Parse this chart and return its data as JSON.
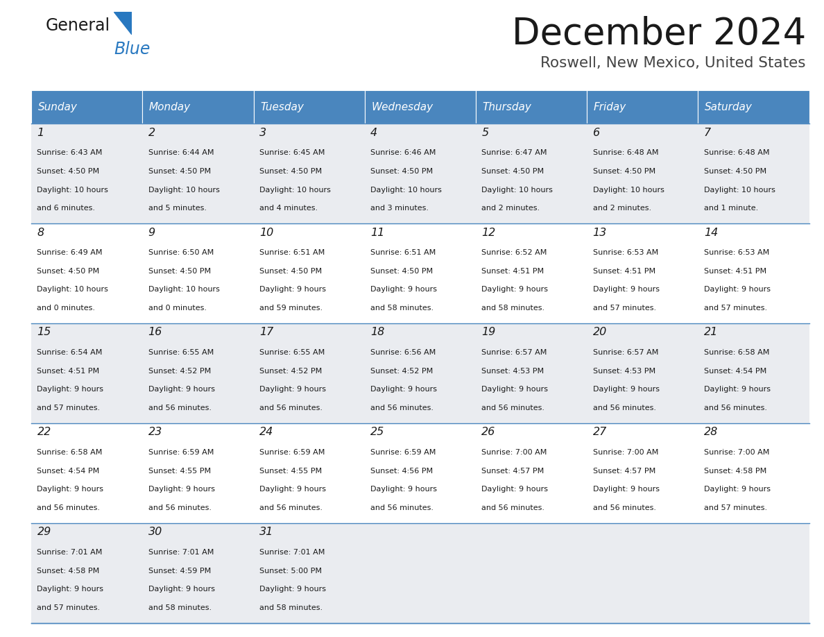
{
  "title": "December 2024",
  "subtitle": "Roswell, New Mexico, United States",
  "header_bg": "#4A86BE",
  "header_text_color": "#FFFFFF",
  "row_bg_odd": "#EAECF0",
  "row_bg_even": "#FFFFFF",
  "cell_border_color": "#4A86BE",
  "days_of_week": [
    "Sunday",
    "Monday",
    "Tuesday",
    "Wednesday",
    "Thursday",
    "Friday",
    "Saturday"
  ],
  "calendar_data": [
    [
      {
        "day": 1,
        "sunrise": "6:43 AM",
        "sunset": "4:50 PM",
        "daylight_line1": "Daylight: 10 hours",
        "daylight_line2": "and 6 minutes."
      },
      {
        "day": 2,
        "sunrise": "6:44 AM",
        "sunset": "4:50 PM",
        "daylight_line1": "Daylight: 10 hours",
        "daylight_line2": "and 5 minutes."
      },
      {
        "day": 3,
        "sunrise": "6:45 AM",
        "sunset": "4:50 PM",
        "daylight_line1": "Daylight: 10 hours",
        "daylight_line2": "and 4 minutes."
      },
      {
        "day": 4,
        "sunrise": "6:46 AM",
        "sunset": "4:50 PM",
        "daylight_line1": "Daylight: 10 hours",
        "daylight_line2": "and 3 minutes."
      },
      {
        "day": 5,
        "sunrise": "6:47 AM",
        "sunset": "4:50 PM",
        "daylight_line1": "Daylight: 10 hours",
        "daylight_line2": "and 2 minutes."
      },
      {
        "day": 6,
        "sunrise": "6:48 AM",
        "sunset": "4:50 PM",
        "daylight_line1": "Daylight: 10 hours",
        "daylight_line2": "and 2 minutes."
      },
      {
        "day": 7,
        "sunrise": "6:48 AM",
        "sunset": "4:50 PM",
        "daylight_line1": "Daylight: 10 hours",
        "daylight_line2": "and 1 minute."
      }
    ],
    [
      {
        "day": 8,
        "sunrise": "6:49 AM",
        "sunset": "4:50 PM",
        "daylight_line1": "Daylight: 10 hours",
        "daylight_line2": "and 0 minutes."
      },
      {
        "day": 9,
        "sunrise": "6:50 AM",
        "sunset": "4:50 PM",
        "daylight_line1": "Daylight: 10 hours",
        "daylight_line2": "and 0 minutes."
      },
      {
        "day": 10,
        "sunrise": "6:51 AM",
        "sunset": "4:50 PM",
        "daylight_line1": "Daylight: 9 hours",
        "daylight_line2": "and 59 minutes."
      },
      {
        "day": 11,
        "sunrise": "6:51 AM",
        "sunset": "4:50 PM",
        "daylight_line1": "Daylight: 9 hours",
        "daylight_line2": "and 58 minutes."
      },
      {
        "day": 12,
        "sunrise": "6:52 AM",
        "sunset": "4:51 PM",
        "daylight_line1": "Daylight: 9 hours",
        "daylight_line2": "and 58 minutes."
      },
      {
        "day": 13,
        "sunrise": "6:53 AM",
        "sunset": "4:51 PM",
        "daylight_line1": "Daylight: 9 hours",
        "daylight_line2": "and 57 minutes."
      },
      {
        "day": 14,
        "sunrise": "6:53 AM",
        "sunset": "4:51 PM",
        "daylight_line1": "Daylight: 9 hours",
        "daylight_line2": "and 57 minutes."
      }
    ],
    [
      {
        "day": 15,
        "sunrise": "6:54 AM",
        "sunset": "4:51 PM",
        "daylight_line1": "Daylight: 9 hours",
        "daylight_line2": "and 57 minutes."
      },
      {
        "day": 16,
        "sunrise": "6:55 AM",
        "sunset": "4:52 PM",
        "daylight_line1": "Daylight: 9 hours",
        "daylight_line2": "and 56 minutes."
      },
      {
        "day": 17,
        "sunrise": "6:55 AM",
        "sunset": "4:52 PM",
        "daylight_line1": "Daylight: 9 hours",
        "daylight_line2": "and 56 minutes."
      },
      {
        "day": 18,
        "sunrise": "6:56 AM",
        "sunset": "4:52 PM",
        "daylight_line1": "Daylight: 9 hours",
        "daylight_line2": "and 56 minutes."
      },
      {
        "day": 19,
        "sunrise": "6:57 AM",
        "sunset": "4:53 PM",
        "daylight_line1": "Daylight: 9 hours",
        "daylight_line2": "and 56 minutes."
      },
      {
        "day": 20,
        "sunrise": "6:57 AM",
        "sunset": "4:53 PM",
        "daylight_line1": "Daylight: 9 hours",
        "daylight_line2": "and 56 minutes."
      },
      {
        "day": 21,
        "sunrise": "6:58 AM",
        "sunset": "4:54 PM",
        "daylight_line1": "Daylight: 9 hours",
        "daylight_line2": "and 56 minutes."
      }
    ],
    [
      {
        "day": 22,
        "sunrise": "6:58 AM",
        "sunset": "4:54 PM",
        "daylight_line1": "Daylight: 9 hours",
        "daylight_line2": "and 56 minutes."
      },
      {
        "day": 23,
        "sunrise": "6:59 AM",
        "sunset": "4:55 PM",
        "daylight_line1": "Daylight: 9 hours",
        "daylight_line2": "and 56 minutes."
      },
      {
        "day": 24,
        "sunrise": "6:59 AM",
        "sunset": "4:55 PM",
        "daylight_line1": "Daylight: 9 hours",
        "daylight_line2": "and 56 minutes."
      },
      {
        "day": 25,
        "sunrise": "6:59 AM",
        "sunset": "4:56 PM",
        "daylight_line1": "Daylight: 9 hours",
        "daylight_line2": "and 56 minutes."
      },
      {
        "day": 26,
        "sunrise": "7:00 AM",
        "sunset": "4:57 PM",
        "daylight_line1": "Daylight: 9 hours",
        "daylight_line2": "and 56 minutes."
      },
      {
        "day": 27,
        "sunrise": "7:00 AM",
        "sunset": "4:57 PM",
        "daylight_line1": "Daylight: 9 hours",
        "daylight_line2": "and 56 minutes."
      },
      {
        "day": 28,
        "sunrise": "7:00 AM",
        "sunset": "4:58 PM",
        "daylight_line1": "Daylight: 9 hours",
        "daylight_line2": "and 57 minutes."
      }
    ],
    [
      {
        "day": 29,
        "sunrise": "7:01 AM",
        "sunset": "4:58 PM",
        "daylight_line1": "Daylight: 9 hours",
        "daylight_line2": "and 57 minutes."
      },
      {
        "day": 30,
        "sunrise": "7:01 AM",
        "sunset": "4:59 PM",
        "daylight_line1": "Daylight: 9 hours",
        "daylight_line2": "and 58 minutes."
      },
      {
        "day": 31,
        "sunrise": "7:01 AM",
        "sunset": "5:00 PM",
        "daylight_line1": "Daylight: 9 hours",
        "daylight_line2": "and 58 minutes."
      },
      null,
      null,
      null,
      null
    ]
  ],
  "fig_width": 11.88,
  "fig_height": 9.18,
  "dpi": 100
}
